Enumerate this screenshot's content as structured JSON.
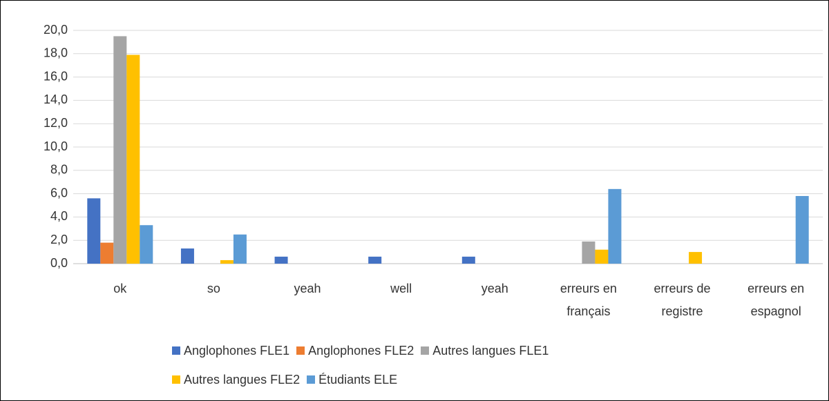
{
  "chart_data": {
    "type": "bar",
    "categories": [
      "ok",
      "so",
      "yeah",
      "well",
      "yeah",
      "erreurs en français",
      "erreurs de registre",
      "erreurs en espagnol"
    ],
    "series": [
      {
        "name": "Anglophones FLE1",
        "color": "#4472c4",
        "values": [
          5.6,
          1.3,
          0.6,
          0.6,
          0.6,
          0,
          0,
          0
        ]
      },
      {
        "name": "Anglophones FLE2",
        "color": "#ed7d31",
        "values": [
          1.8,
          0,
          0,
          0,
          0,
          0,
          0,
          0
        ]
      },
      {
        "name": "Autres langues FLE1",
        "color": "#a5a5a5",
        "values": [
          19.5,
          0,
          0,
          0,
          0,
          1.9,
          0,
          0
        ]
      },
      {
        "name": "Autres langues FLE2",
        "color": "#ffc000",
        "values": [
          17.9,
          0.3,
          0,
          0,
          0,
          1.2,
          1.0,
          0
        ]
      },
      {
        "name": "Étudiants ELE",
        "color": "#5b9bd5",
        "values": [
          3.3,
          2.5,
          0,
          0,
          0,
          6.4,
          0,
          5.8
        ]
      }
    ],
    "ylim": [
      0,
      20
    ],
    "yticks": [
      {
        "value": 0,
        "label": "0,0"
      },
      {
        "value": 2,
        "label": "2,0"
      },
      {
        "value": 4,
        "label": "4,0"
      },
      {
        "value": 6,
        "label": "6,0"
      },
      {
        "value": 8,
        "label": "8,0"
      },
      {
        "value": 10,
        "label": "10,0"
      },
      {
        "value": 12,
        "label": "12,0"
      },
      {
        "value": 14,
        "label": "14,0"
      },
      {
        "value": 16,
        "label": "16,0"
      },
      {
        "value": 18,
        "label": "18,0"
      },
      {
        "value": 20,
        "label": "20,0"
      }
    ],
    "grid": true,
    "legend": "bottom"
  }
}
